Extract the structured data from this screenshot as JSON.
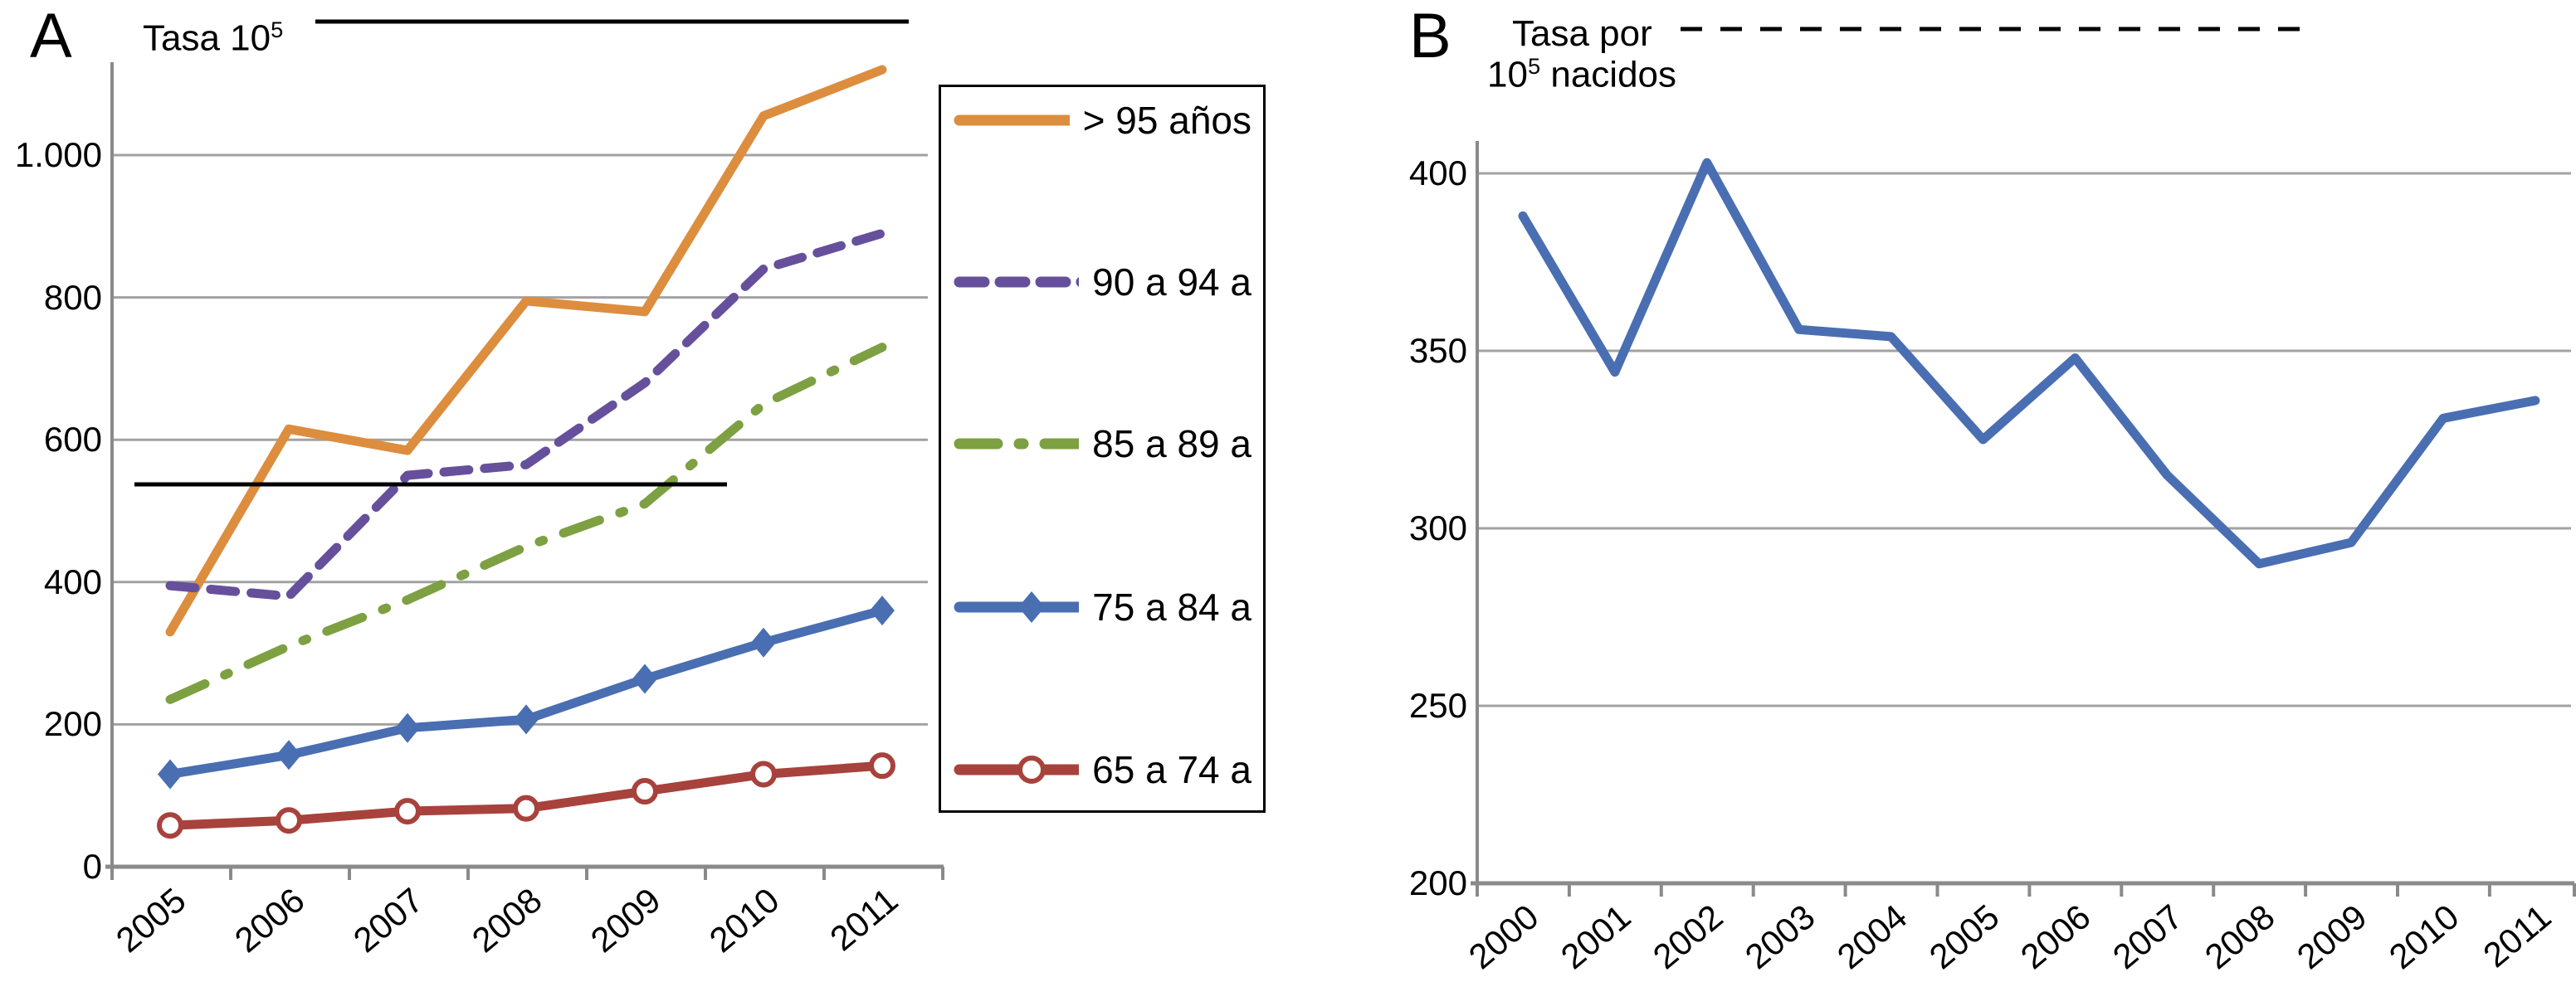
{
  "panels": {
    "A": {
      "label": "A",
      "title_base": "Tasa 10",
      "title_sup": "5"
    },
    "B": {
      "label": "B",
      "title_line1": "Tasa por",
      "title2_base": "10",
      "title2_sup": "5",
      "title2_rest": " nacidos"
    }
  },
  "chart_data": [
    {
      "id": "A",
      "type": "line",
      "title": "Tasa 10^5",
      "xlabel": "",
      "ylabel": "Tasa 10^5",
      "categories": [
        "2005",
        "2006",
        "2007",
        "2008",
        "2009",
        "2010",
        "2011"
      ],
      "ylim": [
        0,
        1150
      ],
      "yticks": [
        0,
        200,
        400,
        600,
        800,
        1000
      ],
      "ytick_labels": [
        "0",
        "200",
        "400",
        "600",
        "800",
        "1.000"
      ],
      "grid": true,
      "legend_position": "right",
      "series": [
        {
          "name": "> 95 años",
          "color": "#dd8d3e",
          "style": "solid",
          "marker": "none",
          "values": [
            330,
            615,
            585,
            795,
            780,
            1055,
            1120
          ]
        },
        {
          "name": "90 a 94 a",
          "color": "#66509c",
          "style": "dashed",
          "marker": "none",
          "values": [
            395,
            380,
            550,
            565,
            680,
            840,
            890
          ]
        },
        {
          "name": "85 a 89 a",
          "color": "#7da042",
          "style": "dashdot",
          "marker": "none",
          "values": [
            235,
            310,
            375,
            450,
            510,
            650,
            730
          ]
        },
        {
          "name": "75 a 84 a",
          "color": "#4a6eb2",
          "style": "solid",
          "marker": "diamond",
          "values": [
            130,
            157,
            195,
            207,
            264,
            315,
            360
          ]
        },
        {
          "name": "65 a 74 a",
          "color": "#a8423c",
          "style": "solid",
          "marker": "circle-open",
          "values": [
            58,
            65,
            78,
            82,
            106,
            130,
            142
          ]
        }
      ]
    },
    {
      "id": "B",
      "type": "line",
      "title": "Tasa por 10^5 nacidos",
      "xlabel": "",
      "ylabel": "Tasa por 10^5 nacidos",
      "categories": [
        "2000",
        "2001",
        "2002",
        "2003",
        "2004",
        "2005",
        "2006",
        "2007",
        "2008",
        "2009",
        "2010",
        "2011"
      ],
      "ylim": [
        200,
        420
      ],
      "yticks": [
        200,
        250,
        300,
        350,
        400
      ],
      "ytick_labels": [
        "200",
        "250",
        "300",
        "350",
        "400"
      ],
      "grid": true,
      "legend_position": "none",
      "series": [
        {
          "name": "Tasa por 10^5 nacidos",
          "color": "#4a6eb2",
          "style": "solid",
          "marker": "none",
          "values": [
            388,
            344,
            403,
            356,
            354,
            325,
            348,
            315,
            290,
            296,
            331,
            336
          ]
        }
      ]
    }
  ],
  "annotations": [
    {
      "panel": "A",
      "type": "line",
      "style": "solid",
      "px": [
        380,
        26,
        1095,
        26
      ]
    },
    {
      "panel": "A",
      "type": "line",
      "style": "solid",
      "px": [
        162,
        584,
        876,
        584
      ]
    },
    {
      "panel": "B",
      "type": "line",
      "style": "dashed",
      "px": [
        2025,
        35,
        2782,
        35
      ]
    }
  ]
}
